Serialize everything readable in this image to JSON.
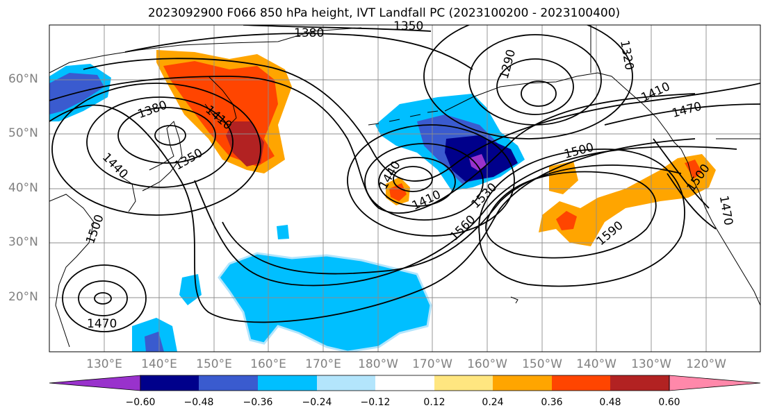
{
  "title": "2023092900 F066 850 hPa height, IVT Landfall PC (2023100200 - 2023100400)",
  "lat_labels": [
    "60°N",
    "50°N",
    "40°N",
    "30°N",
    "20°N"
  ],
  "lon_labels": [
    "130°E",
    "140°E",
    "150°E",
    "160°E",
    "170°E",
    "180°W",
    "170°W",
    "160°W",
    "150°W",
    "140°W",
    "130°W",
    "120°W"
  ],
  "contour_labels": [
    "1380",
    "1350",
    "1290",
    "1320",
    "1380",
    "1410",
    "1350",
    "1410",
    "1470",
    "1440",
    "1500",
    "1440",
    "1410",
    "1530",
    "1560",
    "1590",
    "1500",
    "1470",
    "1500",
    "1470"
  ],
  "colorbar": {
    "ticks": [
      "−0.60",
      "−0.48",
      "−0.36",
      "−0.24",
      "−0.12",
      "0.12",
      "0.24",
      "0.36",
      "0.48",
      "0.60"
    ],
    "colors": [
      "#9932cc",
      "#00008b",
      "#3a5bcf",
      "#00bfff",
      "#b3e5fc",
      "#ffffff",
      "#ffe680",
      "#ffa500",
      "#ff4500",
      "#b22222",
      "#ff88aa"
    ]
  }
}
